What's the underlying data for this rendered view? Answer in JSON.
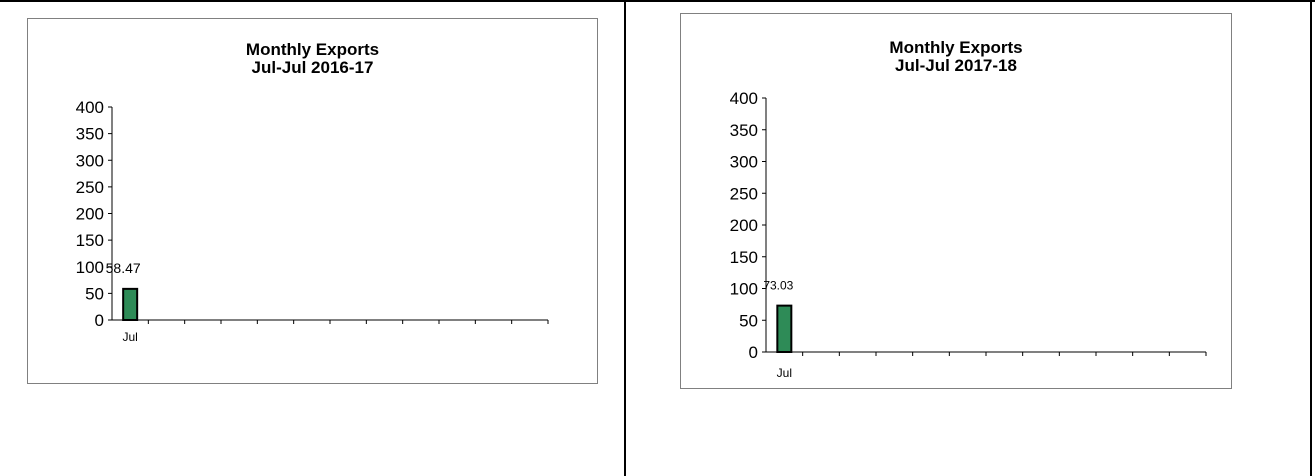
{
  "chart_data": [
    {
      "type": "bar",
      "title": "Monthly Exports",
      "subtitle": "Jul-Jul  2016-17",
      "categories": [
        "Jul"
      ],
      "values": [
        58.47
      ],
      "data_labels": [
        "58.47"
      ],
      "slots": 12,
      "ylim": [
        0,
        400
      ],
      "yticks": [
        0,
        50,
        100,
        150,
        200,
        250,
        300,
        350,
        400
      ],
      "grid": false,
      "bar_color": "#2e8b57"
    },
    {
      "type": "bar",
      "title": "Monthly Exports",
      "subtitle": "Jul-Jul 2017-18",
      "categories": [
        "Jul"
      ],
      "values": [
        73.03
      ],
      "data_labels": [
        "73.03"
      ],
      "slots": 12,
      "ylim": [
        0,
        400
      ],
      "yticks": [
        0,
        50,
        100,
        150,
        200,
        250,
        300,
        350,
        400
      ],
      "grid": false,
      "bar_color": "#2e8b57"
    }
  ]
}
